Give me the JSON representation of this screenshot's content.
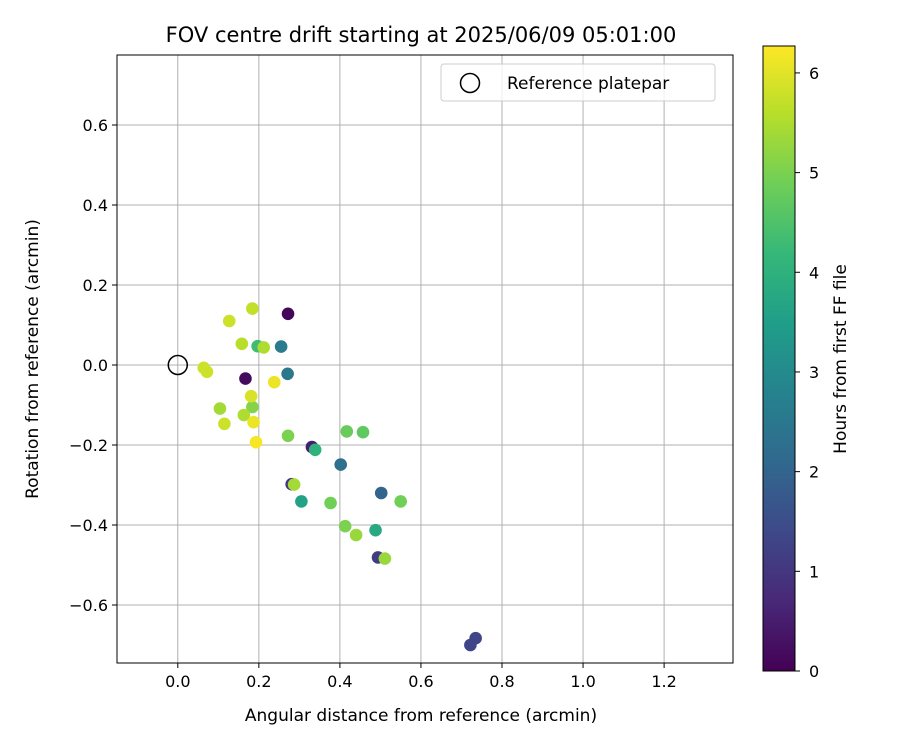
{
  "chart_data": {
    "type": "scatter",
    "title": "FOV centre drift starting at 2025/06/09 05:01:00",
    "xlabel": "Angular distance from reference (arcmin)",
    "ylabel": "Rotation from reference (arcmin)",
    "xlim": [
      -0.15,
      1.37
    ],
    "ylim": [
      -0.745,
      0.775
    ],
    "xticks": [
      0.0,
      0.2,
      0.4,
      0.6,
      0.8,
      1.0,
      1.2
    ],
    "xtick_labels": [
      "0.0",
      "0.2",
      "0.4",
      "0.6",
      "0.8",
      "1.0",
      "1.2"
    ],
    "yticks": [
      -0.6,
      -0.4,
      -0.2,
      0.0,
      0.2,
      0.4,
      0.6
    ],
    "ytick_labels": [
      "−0.6",
      "−0.4",
      "−0.2",
      "0.0",
      "0.2",
      "0.4",
      "0.6"
    ],
    "grid": true,
    "legend": {
      "position": "top-right",
      "entries": [
        "Reference platepar"
      ]
    },
    "reference_point": {
      "x": 0.0,
      "y": 0.0,
      "name": "Reference platepar"
    },
    "colorbar": {
      "label": "Hours from first FF file",
      "colormap": "viridis",
      "range": [
        0,
        6.27
      ],
      "ticks": [
        0,
        1,
        2,
        3,
        4,
        5,
        6
      ],
      "tick_labels": [
        "0",
        "1",
        "2",
        "3",
        "4",
        "5",
        "6"
      ],
      "stops": [
        "#440154",
        "#482878",
        "#3e4989",
        "#31688e",
        "#26828e",
        "#1f9e89",
        "#35b779",
        "#6ece58",
        "#b5de2b",
        "#fde725"
      ]
    },
    "points": [
      {
        "x": 0.272,
        "y": 0.128,
        "c": 0.1
      },
      {
        "x": 0.167,
        "y": -0.034,
        "c": 0.2
      },
      {
        "x": 0.331,
        "y": -0.205,
        "c": 0.5
      },
      {
        "x": 0.281,
        "y": -0.298,
        "c": 1.0
      },
      {
        "x": 0.494,
        "y": -0.481,
        "c": 1.1
      },
      {
        "x": 0.735,
        "y": -0.683,
        "c": 1.3
      },
      {
        "x": 0.722,
        "y": -0.7,
        "c": 1.3
      },
      {
        "x": 0.502,
        "y": -0.32,
        "c": 2.0
      },
      {
        "x": 0.402,
        "y": -0.249,
        "c": 2.3
      },
      {
        "x": 0.271,
        "y": -0.022,
        "c": 2.5
      },
      {
        "x": 0.255,
        "y": 0.046,
        "c": 2.6
      },
      {
        "x": 0.305,
        "y": -0.341,
        "c": 3.6
      },
      {
        "x": 0.488,
        "y": -0.413,
        "c": 3.8
      },
      {
        "x": 0.339,
        "y": -0.212,
        "c": 4.0
      },
      {
        "x": 0.197,
        "y": 0.047,
        "c": 4.3
      },
      {
        "x": 0.457,
        "y": -0.168,
        "c": 4.7
      },
      {
        "x": 0.417,
        "y": -0.166,
        "c": 4.8
      },
      {
        "x": 0.55,
        "y": -0.341,
        "c": 4.9
      },
      {
        "x": 0.377,
        "y": -0.345,
        "c": 4.9
      },
      {
        "x": 0.272,
        "y": -0.177,
        "c": 5.0
      },
      {
        "x": 0.413,
        "y": -0.403,
        "c": 5.0
      },
      {
        "x": 0.184,
        "y": -0.105,
        "c": 5.1
      },
      {
        "x": 0.44,
        "y": -0.425,
        "c": 5.3
      },
      {
        "x": 0.511,
        "y": -0.484,
        "c": 5.3
      },
      {
        "x": 0.287,
        "y": -0.299,
        "c": 5.4
      },
      {
        "x": 0.104,
        "y": -0.109,
        "c": 5.4
      },
      {
        "x": 0.163,
        "y": -0.125,
        "c": 5.5
      },
      {
        "x": 0.212,
        "y": 0.044,
        "c": 5.5
      },
      {
        "x": 0.158,
        "y": 0.053,
        "c": 5.6
      },
      {
        "x": 0.184,
        "y": 0.141,
        "c": 5.7
      },
      {
        "x": 0.127,
        "y": 0.11,
        "c": 5.8
      },
      {
        "x": 0.115,
        "y": -0.147,
        "c": 5.8
      },
      {
        "x": 0.064,
        "y": -0.007,
        "c": 5.8
      },
      {
        "x": 0.072,
        "y": -0.017,
        "c": 5.8
      },
      {
        "x": 0.181,
        "y": -0.078,
        "c": 5.9
      },
      {
        "x": 0.238,
        "y": -0.043,
        "c": 6.1
      },
      {
        "x": 0.187,
        "y": -0.143,
        "c": 6.1
      },
      {
        "x": 0.193,
        "y": -0.193,
        "c": 6.2
      }
    ]
  }
}
